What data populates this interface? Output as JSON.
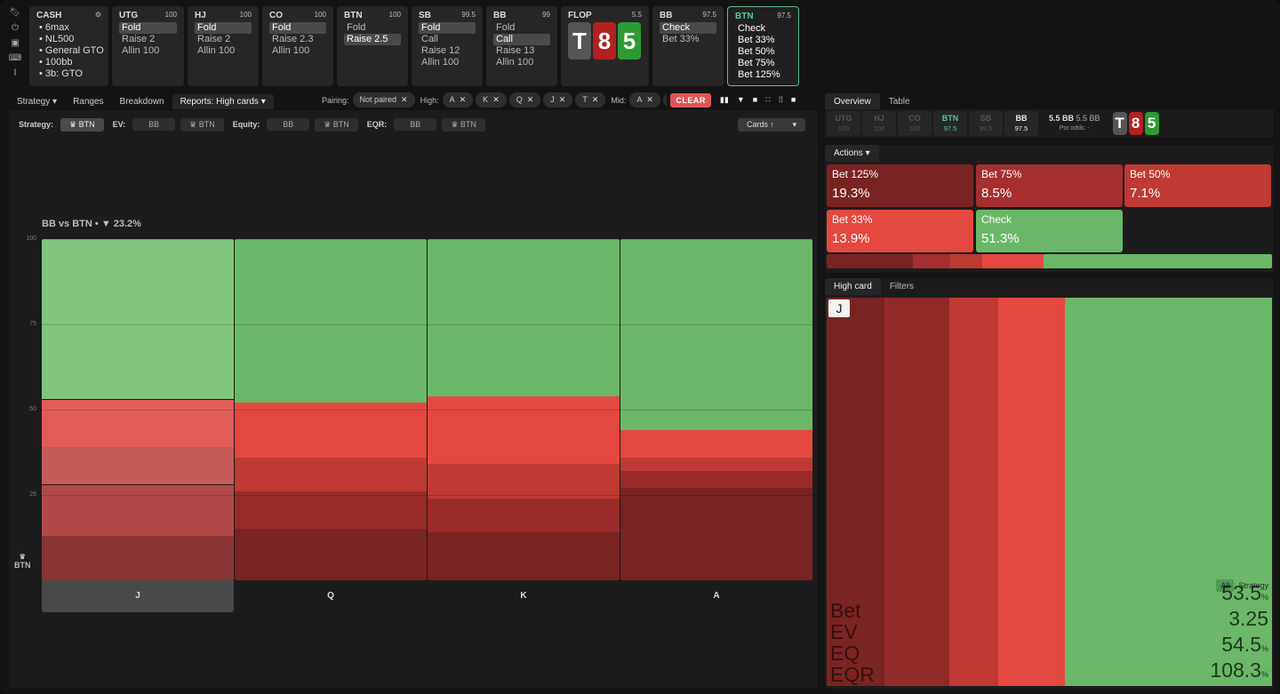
{
  "rail": {
    "icons": [
      "bookmark-icon",
      "power-icon",
      "save-icon",
      "gamepad-icon",
      "text-cursor-icon"
    ]
  },
  "tiles": [
    {
      "id": "cash",
      "title": "CASH",
      "stack": "",
      "items": [
        "6max",
        "NL500",
        "General GTO",
        "100bb",
        "3b: GTO"
      ]
    },
    {
      "id": "utg",
      "title": "UTG",
      "stack": "100",
      "items": [
        "Fold",
        "Raise 2",
        "Allin 100"
      ],
      "selected": 0
    },
    {
      "id": "hj",
      "title": "HJ",
      "stack": "100",
      "items": [
        "Fold",
        "Raise 2",
        "Allin 100"
      ],
      "selected": 0
    },
    {
      "id": "co",
      "title": "CO",
      "stack": "100",
      "items": [
        "Fold",
        "Raise 2.3",
        "Allin 100"
      ],
      "selected": 0
    },
    {
      "id": "btn",
      "title": "BTN",
      "stack": "100",
      "items": [
        "Fold",
        "Raise 2.5"
      ],
      "selected": 1
    },
    {
      "id": "sb",
      "title": "SB",
      "stack": "99.5",
      "items": [
        "Fold",
        "Call",
        "Raise 12",
        "Allin 100"
      ],
      "selected": 0
    },
    {
      "id": "bb",
      "title": "BB",
      "stack": "99",
      "items": [
        "Fold",
        "Call",
        "Raise 13",
        "Allin 100"
      ],
      "selected": 1
    },
    {
      "id": "flop",
      "title": "FLOP",
      "stack": "5.5",
      "cards": [
        "T",
        "8",
        "5"
      ]
    },
    {
      "id": "bb2",
      "title": "BB",
      "stack": "97.5",
      "items": [
        "Check",
        "Bet 33%"
      ],
      "selected": 0
    },
    {
      "id": "btn2",
      "title": "BTN",
      "stack": "97.5",
      "items": [
        "Check",
        "Bet 33%",
        "Bet 50%",
        "Bet 75%",
        "Bet 125%"
      ]
    }
  ],
  "left_tabs": [
    "Strategy",
    "Ranges",
    "Breakdown",
    "Reports: High cards"
  ],
  "filters": {
    "pairing_label": "Pairing:",
    "pairing_value": "Not paired",
    "high_label": "High:",
    "high_values": [
      "A",
      "K",
      "Q",
      "J",
      "T"
    ],
    "mid_label": "Mid:",
    "mid_values": [
      "A",
      "K"
    ],
    "clear": "CLEAR"
  },
  "controls": {
    "strategy_label": "Strategy:",
    "strategy_btn": "BTN",
    "ev_label": "EV:",
    "ev_bb": "BB",
    "ev_btn": "BTN",
    "equity_label": "Equity:",
    "equity_bb": "BB",
    "equity_btn": "BTN",
    "eqr_label": "EQR:",
    "eqr_bb": "BB",
    "eqr_btn": "BTN",
    "sort": "Cards ↑"
  },
  "chart_title": "BB vs BTN •",
  "chart_filter_pct": "23.2%",
  "chart_player": "BTN",
  "colors": {
    "bet125": "#7a2323",
    "bet75": "#9a2b2b",
    "bet50": "#be3a32",
    "bet33": "#e5483f",
    "check": "#6ab867"
  },
  "chart_data": {
    "type": "bar",
    "stacked": true,
    "categories": [
      "J",
      "Q",
      "K",
      "A"
    ],
    "ylim": [
      0,
      100
    ],
    "yticks": [
      25,
      50,
      75,
      100
    ],
    "series": [
      {
        "name": "Bet 125%",
        "values": [
          13,
          15,
          14,
          27
        ]
      },
      {
        "name": "Bet 75%",
        "values": [
          15,
          11,
          10,
          5
        ]
      },
      {
        "name": "Bet 50%",
        "values": [
          11,
          10,
          10,
          4
        ]
      },
      {
        "name": "Bet 33%",
        "values": [
          14,
          16,
          20,
          8
        ]
      },
      {
        "name": "Check",
        "values": [
          47,
          48,
          46,
          56
        ]
      }
    ]
  },
  "right_tabs": [
    "Overview",
    "Table"
  ],
  "positions": [
    {
      "name": "UTG",
      "stack": "100"
    },
    {
      "name": "HJ",
      "stack": "100"
    },
    {
      "name": "CO",
      "stack": "100"
    },
    {
      "name": "BTN",
      "stack": "97.5"
    },
    {
      "name": "SB",
      "stack": "99.5"
    },
    {
      "name": "BB",
      "stack": "97.5"
    }
  ],
  "pot": {
    "pot": "5.5 BB",
    "pot2": "5.5 BB",
    "odds_label": "Pot odds:",
    "odds": "-"
  },
  "board": [
    "T",
    "8",
    "5"
  ],
  "actions_label": "Actions",
  "actions": [
    {
      "name": "Bet 125%",
      "freq": "19.3%"
    },
    {
      "name": "Bet 75%",
      "freq": "8.5%"
    },
    {
      "name": "Bet 50%",
      "freq": "7.1%"
    },
    {
      "name": "Bet 33%",
      "freq": "13.9%"
    },
    {
      "name": "Check",
      "freq": "51.3%"
    }
  ],
  "action_freqs": [
    19.3,
    8.5,
    7.1,
    13.9,
    51.3
  ],
  "hc_tabs": [
    "High card",
    "Filters"
  ],
  "hc_card": "J",
  "hc_toggle": [
    "All",
    "Strategy"
  ],
  "hc_stats": {
    "labels": [
      "Bet",
      "EV",
      "EQ",
      "EQR"
    ],
    "values": [
      "53.5",
      "3.25",
      "54.5",
      "108.3"
    ],
    "units": [
      "%",
      "",
      "%",
      "%"
    ]
  }
}
